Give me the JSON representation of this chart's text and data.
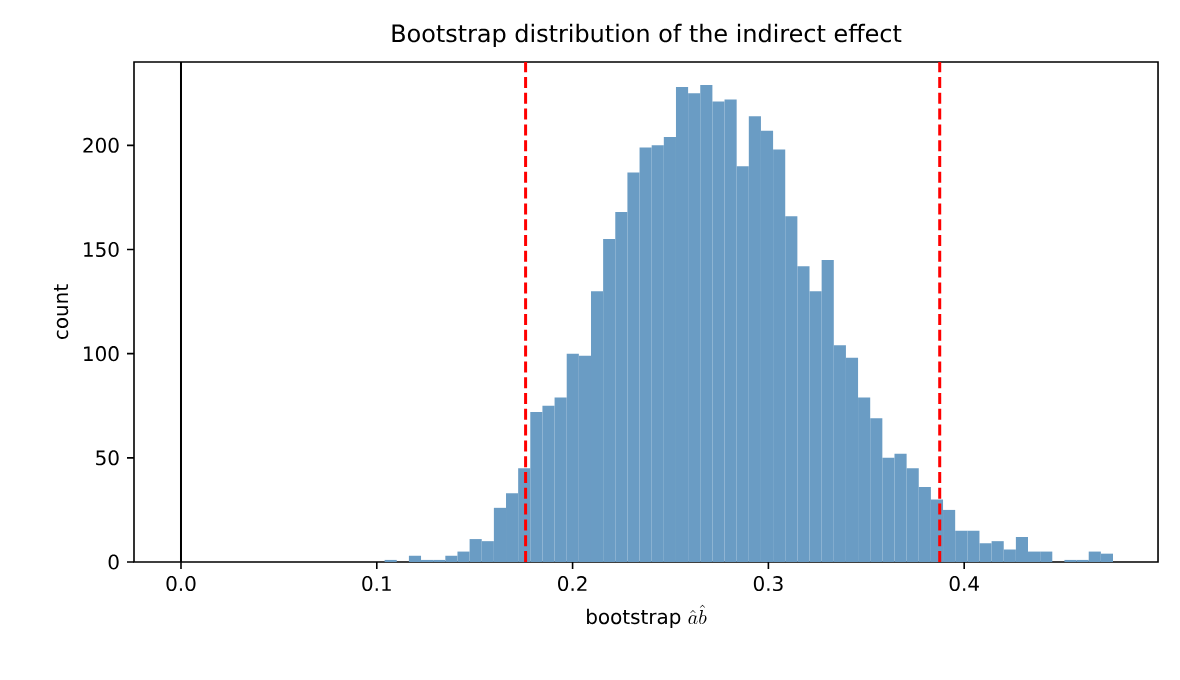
{
  "chart_data": {
    "type": "histogram",
    "title": "Bootstrap distribution of the indirect effect",
    "xlabel": "\\text{bootstrap }\\hat{a}\\hat{b}",
    "ylabel": "count",
    "bins": [
      0.104,
      0.1102,
      0.1164,
      0.1226,
      0.1288,
      0.135,
      0.1412,
      0.1474,
      0.1536,
      0.1598,
      0.166,
      0.1722,
      0.1784,
      0.1846,
      0.1908,
      0.197,
      0.2032,
      0.2094,
      0.2156,
      0.2218,
      0.228,
      0.2342,
      0.2404,
      0.2466,
      0.2528,
      0.259,
      0.2652,
      0.2714,
      0.2776,
      0.2838,
      0.29,
      0.2962,
      0.3024,
      0.3086,
      0.3148,
      0.321,
      0.3272,
      0.3334,
      0.3396,
      0.3458,
      0.352,
      0.3582,
      0.3644,
      0.3706,
      0.3768,
      0.383,
      0.3892,
      0.3954,
      0.4016,
      0.4078,
      0.414,
      0.4202,
      0.4264,
      0.4326,
      0.4388,
      0.445,
      0.4512,
      0.4574,
      0.4636,
      0.4698,
      0.476
    ],
    "values": [
      1,
      0,
      3,
      1,
      1,
      3,
      5,
      11,
      10,
      26,
      33,
      45,
      72,
      75,
      79,
      100,
      99,
      130,
      155,
      168,
      187,
      199,
      200,
      204,
      228,
      225,
      229,
      221,
      222,
      190,
      214,
      207,
      198,
      166,
      142,
      130,
      145,
      104,
      98,
      79,
      69,
      50,
      52,
      45,
      36,
      30,
      25,
      15,
      15,
      9,
      10,
      6,
      12,
      5,
      5,
      0,
      1,
      1,
      5,
      4
    ],
    "color": "#6a9cc4",
    "xlim": [
      -0.024,
      0.499
    ],
    "ylim": [
      0,
      240
    ],
    "xticks": [
      {
        "value": 0,
        "label": "0.0"
      },
      0.1,
      0.2,
      0.3,
      0.4
    ],
    "yticks": [
      0,
      50,
      100,
      150,
      200
    ],
    "ref_lines": [
      {
        "axis": "x",
        "value": 0,
        "color": "#000000",
        "line_style": "solid"
      },
      {
        "axis": "x",
        "value": 0.176,
        "color": "#ff0000",
        "line_style": "dashed"
      },
      {
        "axis": "x",
        "value": 0.3875,
        "color": "#ff0000",
        "line_style": "dashed"
      }
    ],
    "grid": false
  }
}
